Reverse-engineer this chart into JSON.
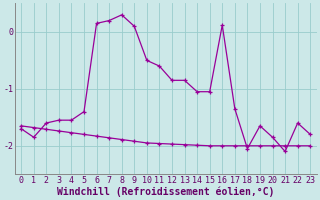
{
  "xlabel": "Windchill (Refroidissement éolien,°C)",
  "hours": [
    0,
    1,
    2,
    3,
    4,
    5,
    6,
    7,
    8,
    9,
    10,
    11,
    12,
    13,
    14,
    15,
    16,
    17,
    18,
    19,
    20,
    21,
    22,
    23
  ],
  "windchill": [
    -1.7,
    -1.85,
    -1.6,
    -1.55,
    -1.55,
    -1.4,
    0.15,
    0.2,
    0.3,
    0.1,
    -0.5,
    -0.6,
    -0.85,
    -0.85,
    -1.05,
    -1.05,
    0.12,
    -1.35,
    -2.05,
    -1.65,
    -1.85,
    -2.1,
    -1.6,
    -1.8
  ],
  "trend": [
    -1.65,
    -1.68,
    -1.71,
    -1.74,
    -1.77,
    -1.8,
    -1.83,
    -1.86,
    -1.89,
    -1.92,
    -1.95,
    -1.96,
    -1.97,
    -1.98,
    -1.99,
    -2.0,
    -2.0,
    -2.0,
    -2.0,
    -2.0,
    -2.0,
    -2.0,
    -2.0,
    -2.0
  ],
  "line_color": "#990099",
  "bg_color": "#cce8e8",
  "grid_color": "#99cccc",
  "ylim": [
    -2.5,
    0.5
  ],
  "yticks": [
    0,
    -1,
    -2
  ],
  "tick_fontsize": 6,
  "xlabel_fontsize": 7
}
